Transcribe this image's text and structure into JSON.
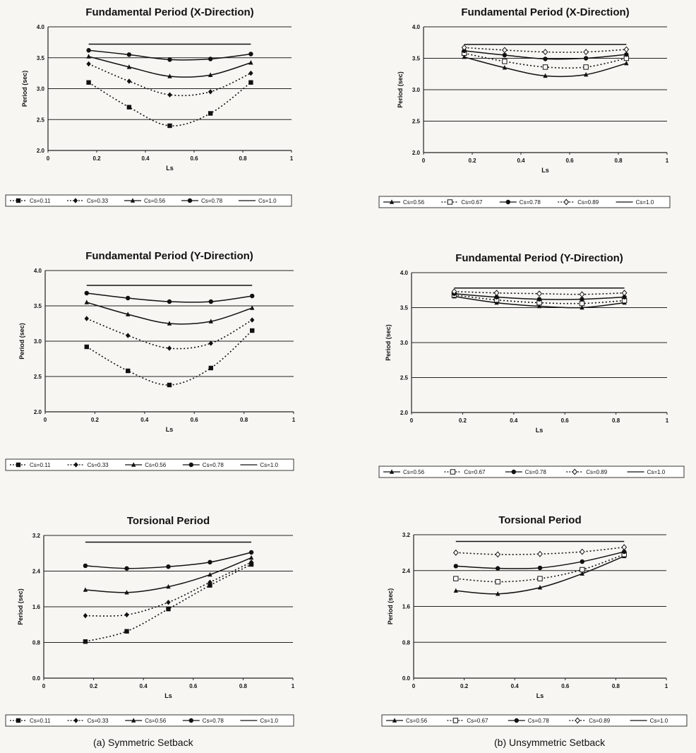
{
  "captions": {
    "left": "(a) Symmetric Setback",
    "right": "(b) Unsymmetric Setback"
  },
  "chart_data": [
    {
      "type": "line",
      "title": "Fundamental Period (X-Direction)",
      "xlabel": "Ls",
      "ylabel": "Period (sec)",
      "xlim": [
        0,
        1
      ],
      "ylim": [
        2.0,
        4.0
      ],
      "xticks": [
        "0",
        "0.2",
        "0.4",
        "0.6",
        "0.8",
        "1"
      ],
      "yticks": [
        "2.0",
        "2.5",
        "3.0",
        "3.5",
        "4.0"
      ],
      "legend_position": "bottom",
      "series": [
        {
          "name": "Cs=0.11",
          "marker": "square",
          "dash": "dotted",
          "x": [
            0.167,
            0.333,
            0.5,
            0.667,
            0.833
          ],
          "y": [
            3.1,
            2.7,
            2.4,
            2.6,
            3.1
          ]
        },
        {
          "name": "Cs=0.33",
          "marker": "diamond",
          "dash": "dotted",
          "x": [
            0.167,
            0.333,
            0.5,
            0.667,
            0.833
          ],
          "y": [
            3.4,
            3.12,
            2.9,
            2.95,
            3.25
          ]
        },
        {
          "name": "Cs=0.56",
          "marker": "triangle",
          "dash": "solid",
          "x": [
            0.167,
            0.333,
            0.5,
            0.667,
            0.833
          ],
          "y": [
            3.52,
            3.35,
            3.2,
            3.22,
            3.42
          ]
        },
        {
          "name": "Cs=0.78",
          "marker": "circle",
          "dash": "solid",
          "x": [
            0.167,
            0.333,
            0.5,
            0.667,
            0.833
          ],
          "y": [
            3.62,
            3.55,
            3.47,
            3.48,
            3.56
          ]
        },
        {
          "name": "Cs=1.0",
          "marker": "none",
          "dash": "solid",
          "x": [
            0.167,
            0.833
          ],
          "y": [
            3.72,
            3.72
          ]
        }
      ]
    },
    {
      "type": "line",
      "title": "Fundamental Period (X-Direction)",
      "xlabel": "Ls",
      "ylabel": "Period (sec)",
      "xlim": [
        0,
        1
      ],
      "ylim": [
        2.0,
        4.0
      ],
      "xticks": [
        "0",
        "0.2",
        "0.4",
        "0.6",
        "0.8",
        "1"
      ],
      "yticks": [
        "2.0",
        "2.5",
        "3.0",
        "3.5",
        "4.0"
      ],
      "legend_position": "bottom",
      "series": [
        {
          "name": "Cs=0.56",
          "marker": "triangle",
          "dash": "solid",
          "x": [
            0.167,
            0.333,
            0.5,
            0.667,
            0.833
          ],
          "y": [
            3.52,
            3.35,
            3.22,
            3.24,
            3.42
          ]
        },
        {
          "name": "Cs=0.67",
          "marker": "open-square",
          "dash": "dotted",
          "x": [
            0.167,
            0.333,
            0.5,
            0.667,
            0.833
          ],
          "y": [
            3.58,
            3.45,
            3.36,
            3.36,
            3.5
          ]
        },
        {
          "name": "Cs=0.78",
          "marker": "circle",
          "dash": "solid",
          "x": [
            0.167,
            0.333,
            0.5,
            0.667,
            0.833
          ],
          "y": [
            3.62,
            3.55,
            3.49,
            3.5,
            3.56
          ]
        },
        {
          "name": "Cs=0.89",
          "marker": "open-diamond",
          "dash": "dotted",
          "x": [
            0.167,
            0.333,
            0.5,
            0.667,
            0.833
          ],
          "y": [
            3.67,
            3.63,
            3.6,
            3.6,
            3.64
          ]
        },
        {
          "name": "Cs=1.0",
          "marker": "none",
          "dash": "solid",
          "x": [
            0.167,
            0.833
          ],
          "y": [
            3.72,
            3.72
          ]
        }
      ]
    },
    {
      "type": "line",
      "title": "Fundamental Period (Y-Direction)",
      "xlabel": "Ls",
      "ylabel": "Period (sec)",
      "xlim": [
        0,
        1
      ],
      "ylim": [
        2.0,
        4.0
      ],
      "xticks": [
        "0",
        "0.2",
        "0.4",
        "0.6",
        "0.8",
        "1"
      ],
      "yticks": [
        "2.0",
        "2.5",
        "3.0",
        "3.5",
        "4.0"
      ],
      "legend_position": "bottom",
      "series": [
        {
          "name": "Cs=0.11",
          "marker": "square",
          "dash": "dotted",
          "x": [
            0.167,
            0.333,
            0.5,
            0.667,
            0.833
          ],
          "y": [
            2.92,
            2.58,
            2.38,
            2.62,
            3.15
          ]
        },
        {
          "name": "Cs=0.33",
          "marker": "diamond",
          "dash": "dotted",
          "x": [
            0.167,
            0.333,
            0.5,
            0.667,
            0.833
          ],
          "y": [
            3.32,
            3.08,
            2.9,
            2.97,
            3.3
          ]
        },
        {
          "name": "Cs=0.56",
          "marker": "triangle",
          "dash": "solid",
          "x": [
            0.167,
            0.333,
            0.5,
            0.667,
            0.833
          ],
          "y": [
            3.55,
            3.38,
            3.25,
            3.28,
            3.47
          ]
        },
        {
          "name": "Cs=0.78",
          "marker": "circle",
          "dash": "solid",
          "x": [
            0.167,
            0.333,
            0.5,
            0.667,
            0.833
          ],
          "y": [
            3.68,
            3.61,
            3.56,
            3.56,
            3.64
          ]
        },
        {
          "name": "Cs=1.0",
          "marker": "none",
          "dash": "solid",
          "x": [
            0.167,
            0.833
          ],
          "y": [
            3.79,
            3.79
          ]
        }
      ]
    },
    {
      "type": "line",
      "title": "Fundamental Period (Y-Direction)",
      "xlabel": "Ls",
      "ylabel": "Period (sec)",
      "xlim": [
        0,
        1
      ],
      "ylim": [
        2.0,
        4.0
      ],
      "xticks": [
        "0",
        "0.2",
        "0.4",
        "0.6",
        "0.8",
        "1"
      ],
      "yticks": [
        "2.0",
        "2.5",
        "3.0",
        "3.5",
        "4.0"
      ],
      "legend_position": "bottom",
      "series": [
        {
          "name": "Cs=0.56",
          "marker": "triangle",
          "dash": "solid",
          "x": [
            0.167,
            0.333,
            0.5,
            0.667,
            0.833
          ],
          "y": [
            3.66,
            3.57,
            3.52,
            3.5,
            3.57
          ]
        },
        {
          "name": "Cs=0.67",
          "marker": "open-square",
          "dash": "dotted",
          "x": [
            0.167,
            0.333,
            0.5,
            0.667,
            0.833
          ],
          "y": [
            3.68,
            3.61,
            3.57,
            3.56,
            3.6
          ]
        },
        {
          "name": "Cs=0.78",
          "marker": "circle",
          "dash": "solid",
          "x": [
            0.167,
            0.333,
            0.5,
            0.667,
            0.833
          ],
          "y": [
            3.7,
            3.65,
            3.62,
            3.62,
            3.65
          ]
        },
        {
          "name": "Cs=0.89",
          "marker": "open-diamond",
          "dash": "dotted",
          "x": [
            0.167,
            0.333,
            0.5,
            0.667,
            0.833
          ],
          "y": [
            3.73,
            3.71,
            3.7,
            3.69,
            3.71
          ]
        },
        {
          "name": "Cs=1.0",
          "marker": "none",
          "dash": "solid",
          "x": [
            0.167,
            0.833
          ],
          "y": [
            3.78,
            3.78
          ]
        }
      ]
    },
    {
      "type": "line",
      "title": "Torsional Period",
      "xlabel": "Ls",
      "ylabel": "Period (sec)",
      "xlim": [
        0,
        1
      ],
      "ylim": [
        0.0,
        3.2
      ],
      "xticks": [
        "0",
        "0.2",
        "0.4",
        "0.6",
        "0.8",
        "1"
      ],
      "yticks": [
        "0.0",
        "0.8",
        "1.6",
        "2.4",
        "3.2"
      ],
      "legend_position": "bottom",
      "series": [
        {
          "name": "Cs=0.11",
          "marker": "square",
          "dash": "dotted",
          "x": [
            0.167,
            0.333,
            0.5,
            0.667,
            0.833
          ],
          "y": [
            0.82,
            1.05,
            1.55,
            2.08,
            2.55
          ]
        },
        {
          "name": "Cs=0.33",
          "marker": "diamond",
          "dash": "dotted",
          "x": [
            0.167,
            0.333,
            0.5,
            0.667,
            0.833
          ],
          "y": [
            1.4,
            1.42,
            1.7,
            2.15,
            2.6
          ]
        },
        {
          "name": "Cs=0.56",
          "marker": "triangle",
          "dash": "solid",
          "x": [
            0.167,
            0.333,
            0.5,
            0.667,
            0.833
          ],
          "y": [
            1.98,
            1.92,
            2.05,
            2.32,
            2.7
          ]
        },
        {
          "name": "Cs=0.78",
          "marker": "circle",
          "dash": "solid",
          "x": [
            0.167,
            0.333,
            0.5,
            0.667,
            0.833
          ],
          "y": [
            2.52,
            2.46,
            2.5,
            2.6,
            2.82
          ]
        },
        {
          "name": "Cs=1.0",
          "marker": "none",
          "dash": "solid",
          "x": [
            0.167,
            0.833
          ],
          "y": [
            3.05,
            3.05
          ]
        }
      ]
    },
    {
      "type": "line",
      "title": "Torsional Period",
      "xlabel": "Ls",
      "ylabel": "Period (sec)",
      "xlim": [
        0,
        1
      ],
      "ylim": [
        0.0,
        3.2
      ],
      "xticks": [
        "0",
        "0.2",
        "0.4",
        "0.6",
        "0.8",
        "1"
      ],
      "yticks": [
        "0.0",
        "0.8",
        "1.6",
        "2.4",
        "3.2"
      ],
      "legend_position": "bottom",
      "series": [
        {
          "name": "Cs=0.56",
          "marker": "triangle",
          "dash": "solid",
          "x": [
            0.167,
            0.333,
            0.5,
            0.667,
            0.833
          ],
          "y": [
            1.95,
            1.88,
            2.02,
            2.33,
            2.72
          ]
        },
        {
          "name": "Cs=0.67",
          "marker": "open-square",
          "dash": "dotted",
          "x": [
            0.167,
            0.333,
            0.5,
            0.667,
            0.833
          ],
          "y": [
            2.22,
            2.15,
            2.22,
            2.42,
            2.76
          ]
        },
        {
          "name": "Cs=0.78",
          "marker": "circle",
          "dash": "solid",
          "x": [
            0.167,
            0.333,
            0.5,
            0.667,
            0.833
          ],
          "y": [
            2.5,
            2.45,
            2.46,
            2.6,
            2.82
          ]
        },
        {
          "name": "Cs=0.89",
          "marker": "open-diamond",
          "dash": "dotted",
          "x": [
            0.167,
            0.333,
            0.5,
            0.667,
            0.833
          ],
          "y": [
            2.8,
            2.76,
            2.77,
            2.82,
            2.92
          ]
        },
        {
          "name": "Cs=1.0",
          "marker": "none",
          "dash": "solid",
          "x": [
            0.167,
            0.833
          ],
          "y": [
            3.05,
            3.05
          ]
        }
      ]
    }
  ]
}
